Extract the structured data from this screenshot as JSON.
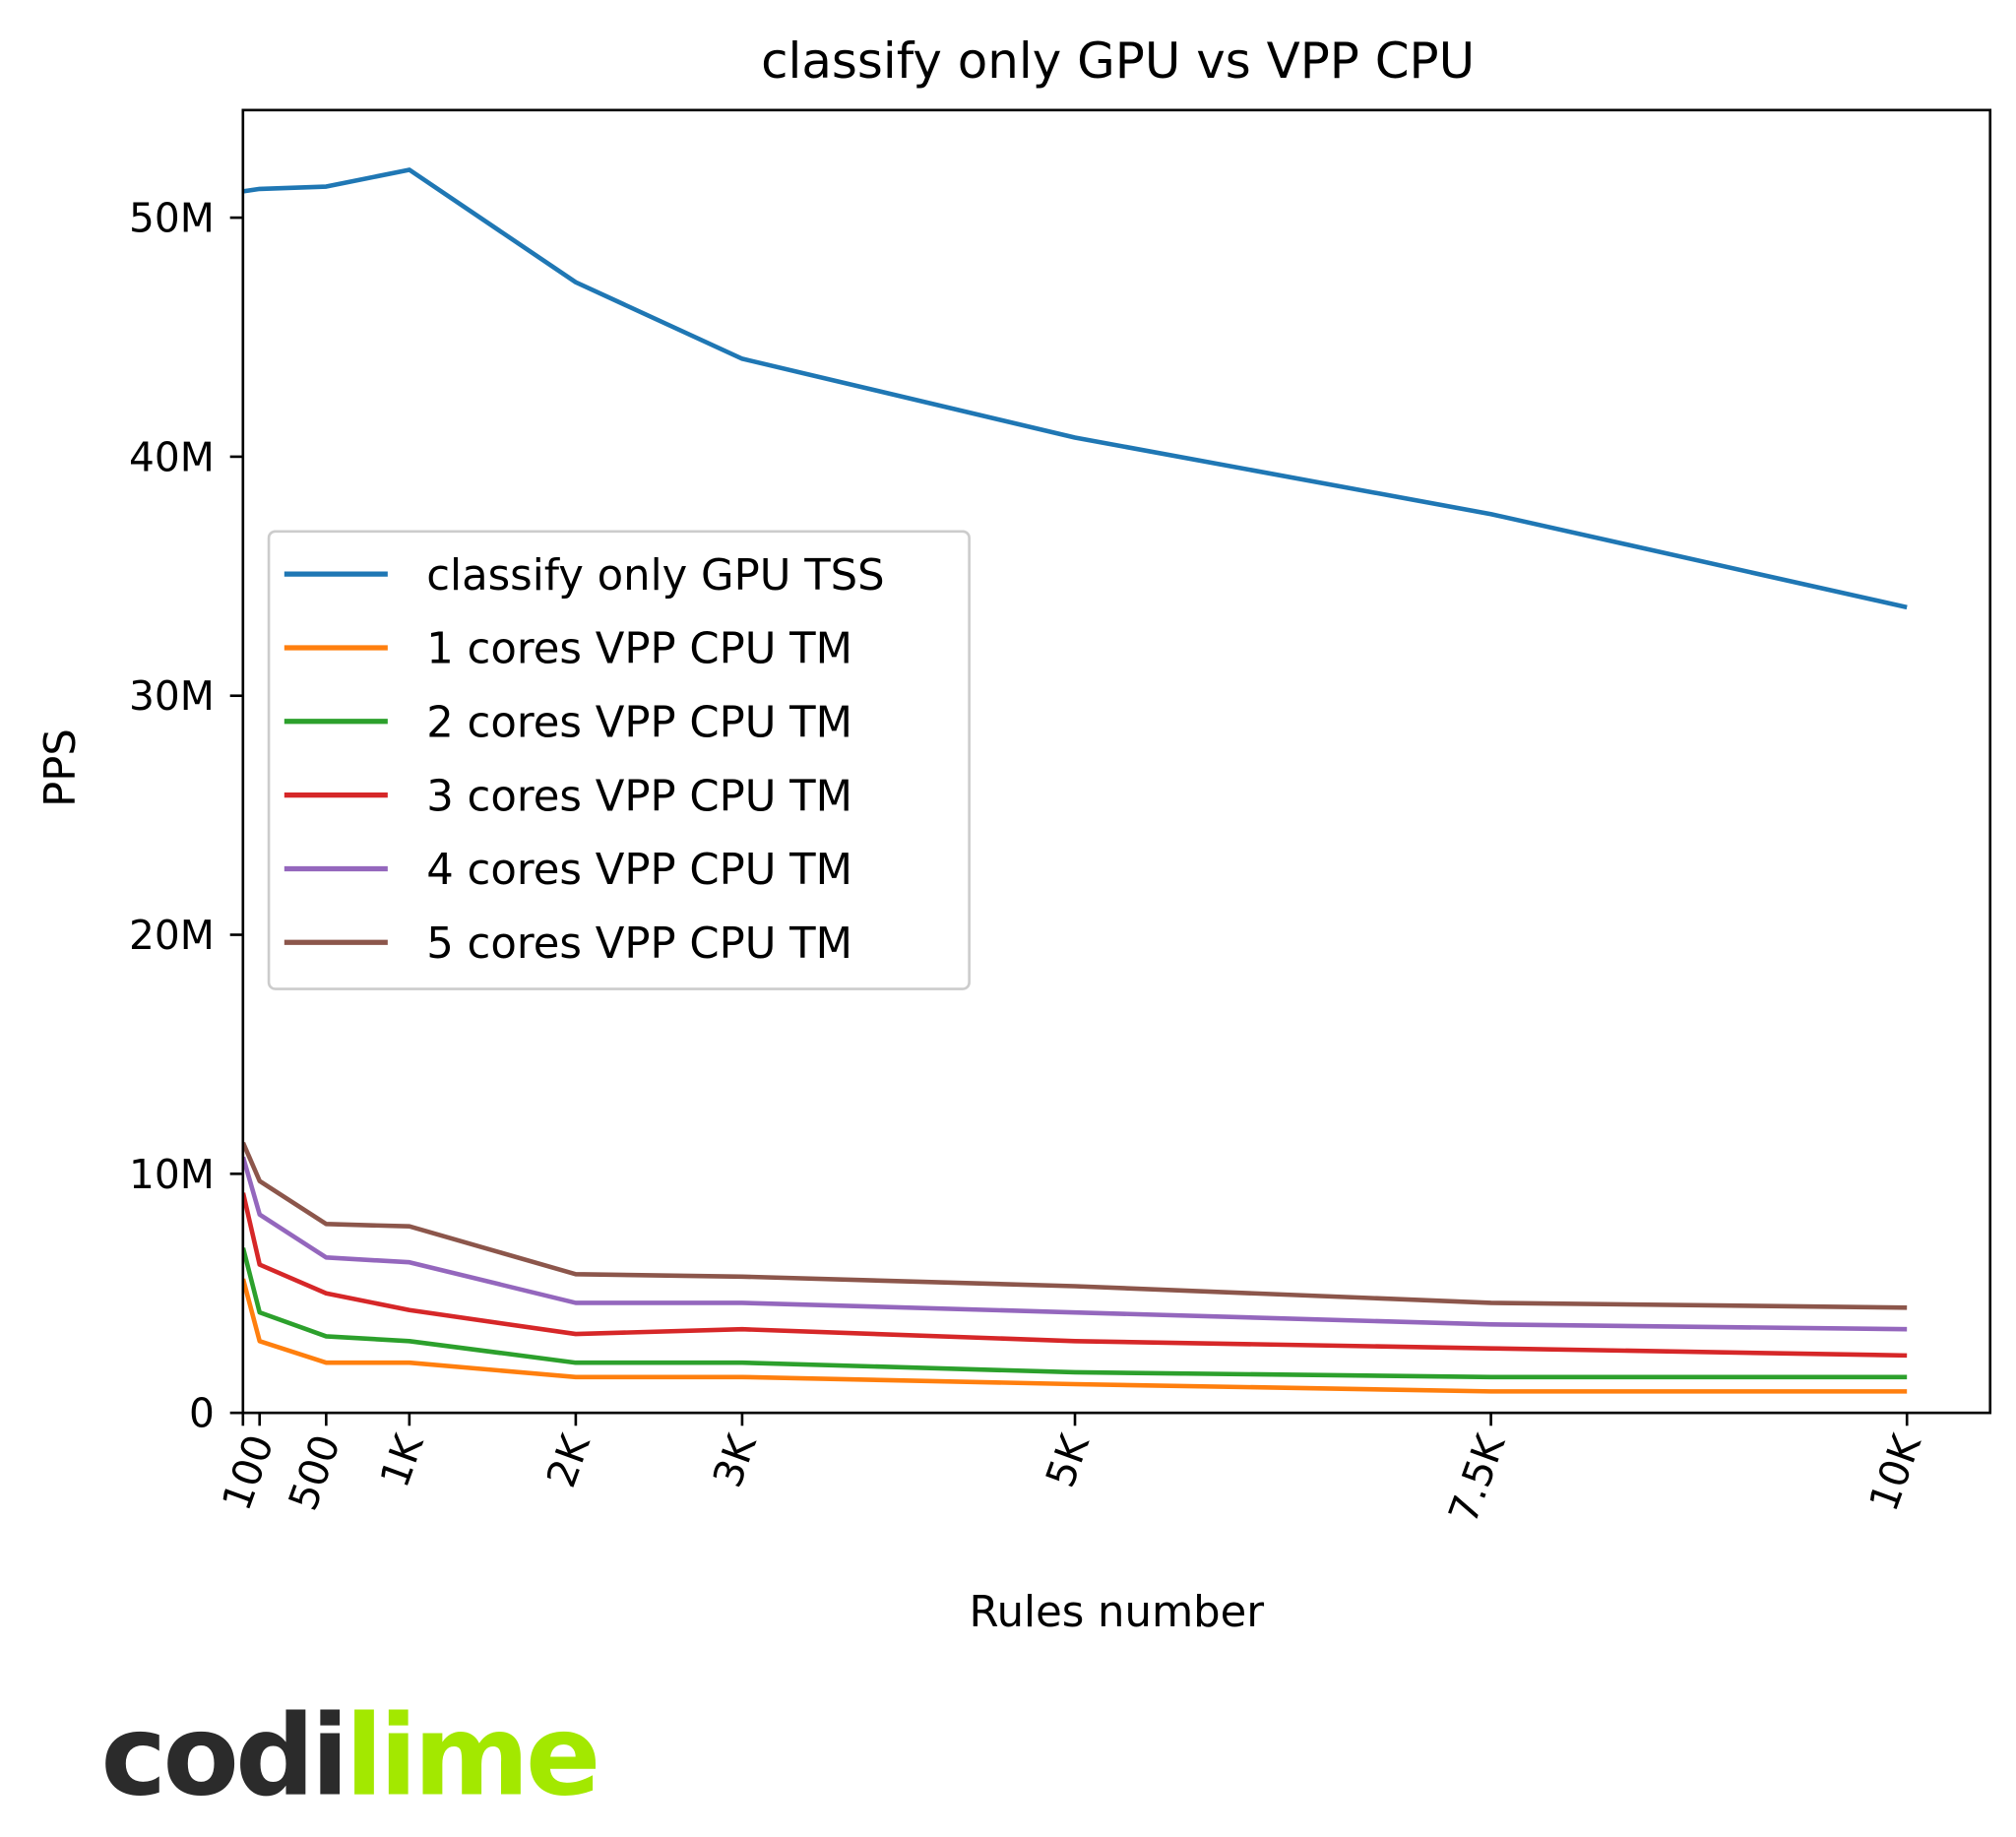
{
  "chart_data": {
    "type": "line",
    "title": "classify only GPU vs VPP CPU",
    "xlabel": "Rules number",
    "ylabel": "PPS",
    "xlim": [
      0,
      10500
    ],
    "ylim": [
      0,
      54500000
    ],
    "grid": false,
    "legend_position": "center-left",
    "x": [
      1,
      100,
      500,
      1000,
      2000,
      3000,
      5000,
      7500,
      10000
    ],
    "x_ticks": [
      {
        "value": 0,
        "label": ""
      },
      {
        "value": 100,
        "label": "100"
      },
      {
        "value": 500,
        "label": "500"
      },
      {
        "value": 1000,
        "label": "1K"
      },
      {
        "value": 2000,
        "label": "2K"
      },
      {
        "value": 3000,
        "label": "3K"
      },
      {
        "value": 5000,
        "label": "5K"
      },
      {
        "value": 7500,
        "label": "7.5K"
      },
      {
        "value": 10000,
        "label": "10K"
      }
    ],
    "y_ticks": [
      {
        "value": 0,
        "label": "0"
      },
      {
        "value": 10000000,
        "label": "10M"
      },
      {
        "value": 20000000,
        "label": "20M"
      },
      {
        "value": 30000000,
        "label": "30M"
      },
      {
        "value": 40000000,
        "label": "40M"
      },
      {
        "value": 50000000,
        "label": "50M"
      }
    ],
    "series": [
      {
        "name": "classify only GPU TSS",
        "color": "#1f77b4",
        "values": [
          51100000,
          51200000,
          51300000,
          52000000,
          47300000,
          44100000,
          40800000,
          37600000,
          33700000
        ]
      },
      {
        "name": "1 cores VPP CPU TM",
        "color": "#ff7f0e",
        "values": [
          5600000,
          3000000,
          2100000,
          2100000,
          1500000,
          1500000,
          1200000,
          900000,
          900000
        ]
      },
      {
        "name": "2 cores VPP CPU TM",
        "color": "#2ca02c",
        "values": [
          6900000,
          4200000,
          3200000,
          3000000,
          2100000,
          2100000,
          1700000,
          1500000,
          1500000
        ]
      },
      {
        "name": "3 cores VPP CPU TM",
        "color": "#d62728",
        "values": [
          9200000,
          6200000,
          5000000,
          4300000,
          3300000,
          3500000,
          3000000,
          2700000,
          2400000
        ]
      },
      {
        "name": "4 cores VPP CPU TM",
        "color": "#9467bd",
        "values": [
          10700000,
          8300000,
          6500000,
          6300000,
          4600000,
          4600000,
          4200000,
          3700000,
          3500000
        ]
      },
      {
        "name": "5 cores VPP CPU TM",
        "color": "#8c564b",
        "values": [
          11300000,
          9700000,
          7900000,
          7800000,
          5800000,
          5700000,
          5300000,
          4600000,
          4400000
        ]
      }
    ]
  },
  "logo": {
    "part1": "codi",
    "part2": "lime",
    "color1": "#2b2b2b",
    "color2": "#a3e800"
  }
}
